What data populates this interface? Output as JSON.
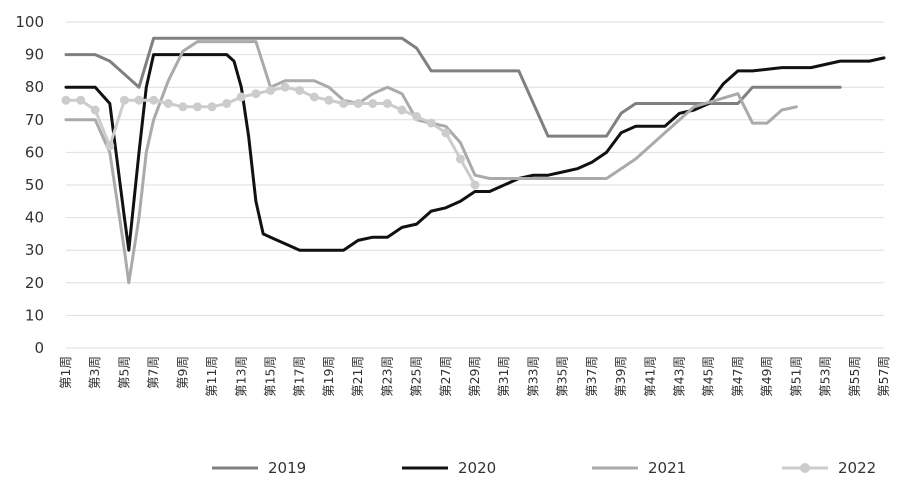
{
  "chart_data": {
    "type": "line",
    "title": "",
    "xlabel": "",
    "ylabel": "",
    "ylim": [
      0,
      100
    ],
    "yticks": [
      0,
      10,
      20,
      30,
      40,
      50,
      60,
      70,
      80,
      90,
      100
    ],
    "grid": "horizontal",
    "legend_position": "bottom",
    "x_tick_labels": [
      "第1周",
      "第3周",
      "第5周",
      "第7周",
      "第9周",
      "第11周",
      "第13周",
      "第15周",
      "第17周",
      "第19周",
      "第21周",
      "第23周",
      "第25周",
      "第27周",
      "第29周",
      "第31周",
      "第33周",
      "第35周",
      "第37周",
      "第39周",
      "第41周",
      "第43周",
      "第45周",
      "第47周",
      "第49周",
      "第51周",
      "第53周",
      "第55周",
      "第57周"
    ],
    "x_range": [
      1,
      57
    ],
    "series": [
      {
        "name": "2019",
        "color": "#808080",
        "marker": false,
        "width": 3,
        "points": [
          [
            1,
            90
          ],
          [
            3,
            90
          ],
          [
            4,
            88
          ],
          [
            6,
            80
          ],
          [
            7,
            95
          ],
          [
            14,
            95
          ],
          [
            15,
            95
          ],
          [
            20,
            95
          ],
          [
            24,
            95
          ],
          [
            25,
            92
          ],
          [
            26,
            85
          ],
          [
            30,
            85
          ],
          [
            32,
            85
          ],
          [
            33,
            75
          ],
          [
            34,
            65
          ],
          [
            38,
            65
          ],
          [
            39,
            72
          ],
          [
            40,
            75
          ],
          [
            47,
            75
          ],
          [
            48,
            80
          ],
          [
            51,
            80
          ],
          [
            54,
            80
          ]
        ]
      },
      {
        "name": "2020",
        "color": "#111111",
        "marker": false,
        "width": 3,
        "points": [
          [
            1,
            80
          ],
          [
            3,
            80
          ],
          [
            4,
            75
          ],
          [
            5,
            40
          ],
          [
            5.3,
            30
          ],
          [
            6,
            60
          ],
          [
            6.5,
            80
          ],
          [
            7,
            90
          ],
          [
            12,
            90
          ],
          [
            12.5,
            88
          ],
          [
            13,
            80
          ],
          [
            13.5,
            65
          ],
          [
            14,
            45
          ],
          [
            14.5,
            35
          ],
          [
            15,
            34
          ],
          [
            16,
            32
          ],
          [
            17,
            30
          ],
          [
            20,
            30
          ],
          [
            21,
            33
          ],
          [
            22,
            34
          ],
          [
            23,
            34
          ],
          [
            24,
            37
          ],
          [
            25,
            38
          ],
          [
            26,
            42
          ],
          [
            27,
            43
          ],
          [
            28,
            45
          ],
          [
            29,
            48
          ],
          [
            30,
            48
          ],
          [
            31,
            50
          ],
          [
            32,
            52
          ],
          [
            33,
            53
          ],
          [
            34,
            53
          ],
          [
            35,
            54
          ],
          [
            36,
            55
          ],
          [
            37,
            57
          ],
          [
            38,
            60
          ],
          [
            39,
            66
          ],
          [
            40,
            68
          ],
          [
            42,
            68
          ],
          [
            43,
            72
          ],
          [
            44,
            73
          ],
          [
            45,
            75
          ],
          [
            46,
            81
          ],
          [
            47,
            85
          ],
          [
            48,
            85
          ],
          [
            50,
            86
          ],
          [
            52,
            86
          ],
          [
            53,
            87
          ],
          [
            54,
            88
          ],
          [
            56,
            88
          ],
          [
            57,
            89
          ]
        ]
      },
      {
        "name": "2021",
        "color": "#aaaaaa",
        "marker": false,
        "width": 3,
        "points": [
          [
            1,
            70
          ],
          [
            3,
            70
          ],
          [
            4,
            60
          ],
          [
            5,
            30
          ],
          [
            5.3,
            20
          ],
          [
            6,
            40
          ],
          [
            6.5,
            60
          ],
          [
            7,
            70
          ],
          [
            8,
            82
          ],
          [
            9,
            91
          ],
          [
            10,
            94
          ],
          [
            14,
            94
          ],
          [
            15,
            80
          ],
          [
            16,
            82
          ],
          [
            18,
            82
          ],
          [
            19,
            80
          ],
          [
            20,
            76
          ],
          [
            21,
            75
          ],
          [
            22,
            78
          ],
          [
            23,
            80
          ],
          [
            24,
            78
          ],
          [
            25,
            70
          ],
          [
            26,
            69
          ],
          [
            27,
            68
          ],
          [
            28,
            63
          ],
          [
            29,
            53
          ],
          [
            30,
            52
          ],
          [
            38,
            52
          ],
          [
            39,
            55
          ],
          [
            40,
            58
          ],
          [
            41,
            62
          ],
          [
            42,
            66
          ],
          [
            43,
            70
          ],
          [
            44,
            74
          ],
          [
            47,
            78
          ],
          [
            48,
            69
          ],
          [
            49,
            69
          ],
          [
            50,
            73
          ],
          [
            51,
            74
          ]
        ]
      },
      {
        "name": "2022",
        "color": "#cccccc",
        "marker": true,
        "width": 3,
        "points": [
          [
            1,
            76
          ],
          [
            2,
            76
          ],
          [
            3,
            73
          ],
          [
            4,
            62
          ],
          [
            5,
            76
          ],
          [
            6,
            76
          ],
          [
            7,
            76
          ],
          [
            8,
            75
          ],
          [
            9,
            74
          ],
          [
            10,
            74
          ],
          [
            11,
            74
          ],
          [
            12,
            75
          ],
          [
            13,
            77
          ],
          [
            14,
            78
          ],
          [
            15,
            79
          ],
          [
            16,
            80
          ],
          [
            17,
            79
          ],
          [
            18,
            77
          ],
          [
            19,
            76
          ],
          [
            20,
            75
          ],
          [
            21,
            75
          ],
          [
            22,
            75
          ],
          [
            23,
            75
          ],
          [
            24,
            73
          ],
          [
            25,
            71
          ],
          [
            26,
            69
          ],
          [
            27,
            66
          ],
          [
            28,
            58
          ],
          [
            29,
            50
          ]
        ]
      }
    ]
  }
}
